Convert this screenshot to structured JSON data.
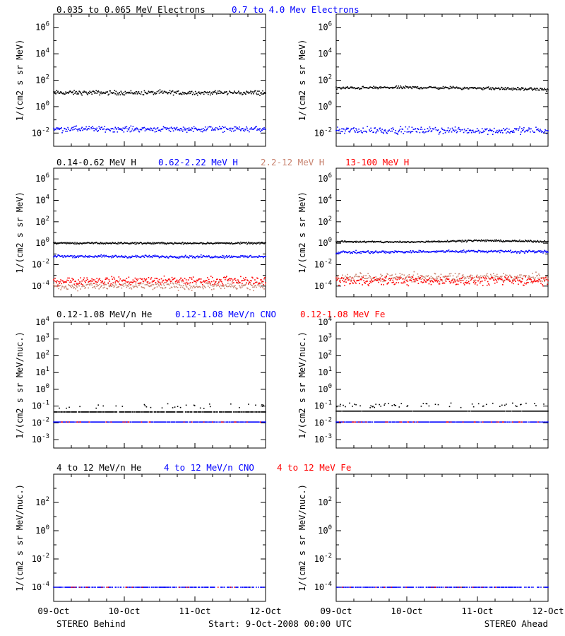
{
  "colors": {
    "black": "#000000",
    "blue": "#0000ff",
    "salmon": "#c8826e",
    "red": "#ff0000"
  },
  "headers": [
    [
      {
        "text": "0.035 to 0.065 MeV Electrons",
        "color": "#000000"
      },
      {
        "text": "0.7 to 4.0 Mev Electrons",
        "color": "#0000ff"
      }
    ],
    [
      {
        "text": "0.14-0.62 MeV H",
        "color": "#000000"
      },
      {
        "text": "0.62-2.22 MeV H",
        "color": "#0000ff"
      },
      {
        "text": "2.2-12 MeV H",
        "color": "#c8826e"
      },
      {
        "text": "13-100 MeV H",
        "color": "#ff0000"
      }
    ],
    [
      {
        "text": "0.12-1.08 MeV/n He",
        "color": "#000000"
      },
      {
        "text": "0.12-1.08 MeV/n CNO",
        "color": "#0000ff"
      },
      {
        "text": "0.12-1.08 MeV Fe",
        "color": "#ff0000"
      }
    ],
    [
      {
        "text": "4 to 12 MeV/n He",
        "color": "#000000"
      },
      {
        "text": "4 to 12 MeV/n CNO",
        "color": "#0000ff"
      },
      {
        "text": "4 to 12 MeV Fe",
        "color": "#ff0000"
      }
    ]
  ],
  "footer": {
    "left": "STEREO Behind",
    "center": "Start:  9-Oct-2008 00:00 UTC",
    "right": "STEREO Ahead"
  },
  "chart_data": [
    {
      "type": "scatter",
      "row": 0,
      "col": 0,
      "spacecraft": "STEREO Behind",
      "ylabel": "1/(cm2 s sr MeV)",
      "yscale": "log",
      "ylim_log10": [
        -3,
        7
      ],
      "ytick_exponents": [
        -2,
        0,
        2,
        4,
        6
      ],
      "x_ticks": [
        "09-Oct",
        "10-Oct",
        "11-Oct",
        "12-Oct"
      ],
      "x_range_days": [
        0,
        3
      ],
      "series": [
        {
          "name": "0.035 to 0.065 MeV Electrons",
          "color": "#000000",
          "log10_level": [
            1.05,
            1.05,
            1.05,
            1.05
          ],
          "log10_jitter": 0.08,
          "dropouts": 0.01
        },
        {
          "name": "0.7 to 4.0 Mev Electrons",
          "color": "#0000ff",
          "log10_level": [
            -1.7,
            -1.7,
            -1.7,
            -1.7
          ],
          "log10_jitter": 0.1,
          "dropouts": 0.03
        }
      ]
    },
    {
      "type": "scatter",
      "row": 0,
      "col": 1,
      "spacecraft": "STEREO Ahead",
      "ylabel": "1/(cm2 s sr MeV)",
      "yscale": "log",
      "ylim_log10": [
        -3,
        7
      ],
      "ytick_exponents": [
        -2,
        0,
        2,
        4,
        6
      ],
      "x_ticks": [
        "09-Oct",
        "10-Oct",
        "11-Oct",
        "12-Oct"
      ],
      "x_range_days": [
        0,
        3
      ],
      "series": [
        {
          "name": "0.035 to 0.065 MeV Electrons",
          "color": "#000000",
          "log10_level": [
            1.4,
            1.45,
            1.4,
            1.3
          ],
          "log10_jitter": 0.05,
          "dropouts": 0
        },
        {
          "name": "0.7 to 4.0 Mev Electrons",
          "color": "#0000ff",
          "log10_level": [
            -1.8,
            -1.8,
            -1.8,
            -1.8
          ],
          "log10_jitter": 0.12,
          "dropouts": 0.12
        }
      ]
    },
    {
      "type": "scatter",
      "row": 1,
      "col": 0,
      "spacecraft": "STEREO Behind",
      "ylabel": "1/(cm2 s sr MeV)",
      "yscale": "log",
      "ylim_log10": [
        -5,
        7
      ],
      "ytick_exponents": [
        -4,
        -2,
        0,
        2,
        4,
        6
      ],
      "x_ticks": [
        "09-Oct",
        "10-Oct",
        "11-Oct",
        "12-Oct"
      ],
      "x_range_days": [
        0,
        3
      ],
      "series": [
        {
          "name": "0.14-0.62 MeV H",
          "color": "#000000",
          "log10_level": [
            0.0,
            0.0,
            0.0,
            0.0
          ],
          "log10_jitter": 0.04,
          "dropouts": 0
        },
        {
          "name": "0.62-2.22 MeV H",
          "color": "#0000ff",
          "log10_level": [
            -1.2,
            -1.25,
            -1.25,
            -1.25
          ],
          "log10_jitter": 0.06,
          "dropouts": 0
        },
        {
          "name": "2.2-12 MeV H",
          "color": "#c8826e",
          "log10_level": [
            -4.0,
            -4.0,
            -4.0,
            -4.0
          ],
          "log10_jitter": 0.18,
          "dropouts": 0
        },
        {
          "name": "13-100 MeV H",
          "color": "#ff0000",
          "log10_level": [
            -3.5,
            -3.5,
            -3.5,
            -3.5
          ],
          "log10_jitter": 0.18,
          "dropouts": 0
        }
      ]
    },
    {
      "type": "scatter",
      "row": 1,
      "col": 1,
      "spacecraft": "STEREO Ahead",
      "ylabel": "1/(cm2 s sr MeV)",
      "yscale": "log",
      "ylim_log10": [
        -5,
        7
      ],
      "ytick_exponents": [
        -4,
        -2,
        0,
        2,
        4,
        6
      ],
      "x_ticks": [
        "09-Oct",
        "10-Oct",
        "11-Oct",
        "12-Oct"
      ],
      "x_range_days": [
        0,
        3
      ],
      "series": [
        {
          "name": "0.14-0.62 MeV H",
          "color": "#000000",
          "log10_level": [
            0.15,
            0.1,
            0.25,
            0.15
          ],
          "log10_jitter": 0.04,
          "dropouts": 0
        },
        {
          "name": "0.62-2.22 MeV H",
          "color": "#0000ff",
          "log10_level": [
            -0.85,
            -0.8,
            -0.75,
            -0.8
          ],
          "log10_jitter": 0.06,
          "dropouts": 0
        },
        {
          "name": "2.2-12 MeV H",
          "color": "#c8826e",
          "log10_level": [
            -3.2,
            -3.2,
            -3.2,
            -3.2
          ],
          "log10_jitter": 0.2,
          "dropouts": 0
        },
        {
          "name": "13-100 MeV H",
          "color": "#ff0000",
          "log10_level": [
            -3.5,
            -3.5,
            -3.5,
            -3.5
          ],
          "log10_jitter": 0.2,
          "dropouts": 0
        }
      ]
    },
    {
      "type": "scatter",
      "row": 2,
      "col": 0,
      "spacecraft": "STEREO Behind",
      "ylabel": "1/(cm2 s sr MeV/nuc.)",
      "yscale": "log",
      "ylim_log10": [
        -3.5,
        4
      ],
      "ytick_exponents": [
        -3,
        -2,
        -1,
        0,
        1,
        2,
        3,
        4
      ],
      "x_ticks": [
        "09-Oct",
        "10-Oct",
        "11-Oct",
        "12-Oct"
      ],
      "x_range_days": [
        0,
        3
      ],
      "series": [
        {
          "name": "0.12-1.08 MeV/n He",
          "color": "#000000",
          "log10_level": [
            -1.35,
            -1.35,
            -1.35,
            -1.35
          ],
          "log10_jitter": 0,
          "dropouts": 0.2,
          "upper_level": -1.0
        },
        {
          "name": "0.12-1.08 MeV/n CNO",
          "color": "#0000ff",
          "log10_level": [
            -1.95,
            -1.95,
            -1.95,
            -1.95
          ],
          "log10_jitter": 0,
          "dropouts": 0.1
        },
        {
          "name": "0.12-1.08 MeV Fe",
          "color": "#ff0000",
          "log10_level": [
            -1.95,
            -1.95,
            -1.95,
            -1.95
          ],
          "log10_jitter": 0,
          "dropouts": 0.9
        }
      ]
    },
    {
      "type": "scatter",
      "row": 2,
      "col": 1,
      "spacecraft": "STEREO Ahead",
      "ylabel": "1/(cm2 s sr MeV/nuc.)",
      "yscale": "log",
      "ylim_log10": [
        -3.5,
        4
      ],
      "ytick_exponents": [
        -3,
        -2,
        -1,
        0,
        1,
        2,
        3,
        4
      ],
      "x_ticks": [
        "09-Oct",
        "10-Oct",
        "11-Oct",
        "12-Oct"
      ],
      "x_range_days": [
        0,
        3
      ],
      "series": [
        {
          "name": "0.12-1.08 MeV/n He",
          "color": "#000000",
          "log10_level": [
            -1.3,
            -1.3,
            -1.3,
            -1.3
          ],
          "log10_jitter": 0,
          "dropouts": 0.05,
          "upper_level": -0.95
        },
        {
          "name": "0.12-1.08 MeV/n CNO",
          "color": "#0000ff",
          "log10_level": [
            -1.95,
            -1.95,
            -1.95,
            -1.95
          ],
          "log10_jitter": 0,
          "dropouts": 0.1
        },
        {
          "name": "0.12-1.08 MeV Fe",
          "color": "#ff0000",
          "log10_level": [
            -1.95,
            -1.95,
            -1.95,
            -1.95
          ],
          "log10_jitter": 0,
          "dropouts": 0.9
        }
      ]
    },
    {
      "type": "scatter",
      "row": 3,
      "col": 0,
      "spacecraft": "STEREO Behind",
      "ylabel": "1/(cm2 s sr MeV/nuc.)",
      "yscale": "log",
      "ylim_log10": [
        -5,
        4
      ],
      "ytick_exponents": [
        -4,
        -2,
        0,
        2
      ],
      "x_ticks": [
        "09-Oct",
        "10-Oct",
        "11-Oct",
        "12-Oct"
      ],
      "x_range_days": [
        0,
        3
      ],
      "series": [
        {
          "name": "4 to 12 MeV/n He",
          "color": "#000000",
          "log10_level": [
            -4.0,
            -4.0,
            -4.0,
            -4.0
          ],
          "log10_jitter": 0,
          "dropouts": 0.97
        },
        {
          "name": "4 to 12 MeV/n CNO",
          "color": "#0000ff",
          "log10_level": [
            -4.0,
            -4.0,
            -4.0,
            -4.0
          ],
          "log10_jitter": 0,
          "dropouts": 0.35
        },
        {
          "name": "4 to 12 MeV Fe",
          "color": "#ff0000",
          "log10_level": [
            -4.0,
            -4.0,
            -4.0,
            -4.0
          ],
          "log10_jitter": 0,
          "dropouts": 0.95
        }
      ]
    },
    {
      "type": "scatter",
      "row": 3,
      "col": 1,
      "spacecraft": "STEREO Ahead",
      "ylabel": "1/(cm2 s sr MeV/nuc.)",
      "yscale": "log",
      "ylim_log10": [
        -5,
        4
      ],
      "ytick_exponents": [
        -4,
        -2,
        0,
        2
      ],
      "x_ticks": [
        "09-Oct",
        "10-Oct",
        "11-Oct",
        "12-Oct"
      ],
      "x_range_days": [
        0,
        3
      ],
      "series": [
        {
          "name": "4 to 12 MeV/n He",
          "color": "#000000",
          "log10_level": [
            -4.0,
            -4.0,
            -4.0,
            -4.0
          ],
          "log10_jitter": 0,
          "dropouts": 0.97
        },
        {
          "name": "4 to 12 MeV/n CNO",
          "color": "#0000ff",
          "log10_level": [
            -4.0,
            -4.0,
            -4.0,
            -4.0
          ],
          "log10_jitter": 0,
          "dropouts": 0.35
        },
        {
          "name": "4 to 12 MeV Fe",
          "color": "#ff0000",
          "log10_level": [
            -4.0,
            -4.0,
            -4.0,
            -4.0
          ],
          "log10_jitter": 0,
          "dropouts": 0.95
        }
      ]
    }
  ]
}
